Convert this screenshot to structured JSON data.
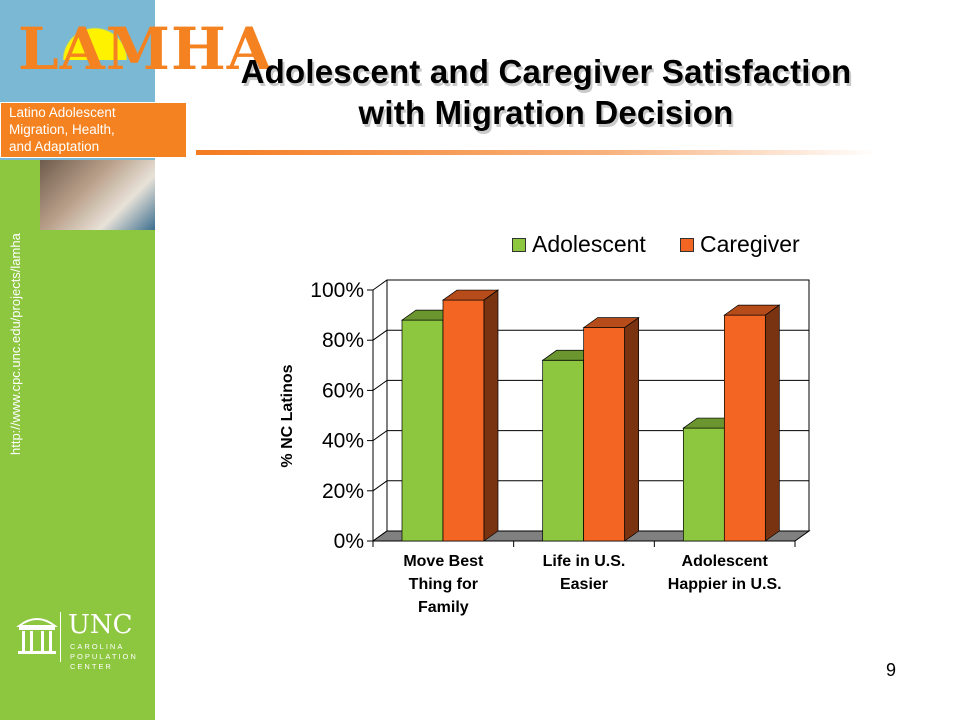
{
  "logo": {
    "wordmark": "LAMHA",
    "band_lines": [
      "Latino Adolescent",
      "Migration, Health,",
      "and Adaptation"
    ]
  },
  "sidebar": {
    "url": "http://www.cpc.unc.edu/projects/lamha",
    "unc_word": "UNC",
    "unc_sub": [
      "CAROLINA",
      "POPULATION",
      "CENTER"
    ]
  },
  "slide": {
    "title_lines": [
      "Adolescent and Caregiver Satisfaction",
      "with Migration Decision"
    ],
    "page_number": "9"
  },
  "colors": {
    "adolescent": "#8dc63f",
    "caregiver": "#f26522",
    "accent": "#f58220"
  },
  "chart_data": {
    "type": "bar",
    "categories": [
      [
        "Move Best",
        "Thing for",
        "Family"
      ],
      [
        "Life in U.S.",
        "Easier"
      ],
      [
        "Adolescent",
        "Happier in U.S."
      ]
    ],
    "series": [
      {
        "name": "Adolescent",
        "values": [
          88,
          72,
          45
        ]
      },
      {
        "name": "Caregiver",
        "values": [
          96,
          85,
          90
        ]
      }
    ],
    "ylabel": "% NC Latinos",
    "yticks": [
      "0%",
      "20%",
      "40%",
      "60%",
      "80%",
      "100%"
    ],
    "ylim": [
      0,
      100
    ],
    "legend_position": "top",
    "three_d": true,
    "grid": true
  }
}
